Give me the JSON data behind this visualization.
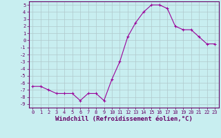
{
  "xlabel": "Windchill (Refroidissement éolien,°C)",
  "x": [
    0,
    1,
    2,
    3,
    4,
    5,
    6,
    7,
    8,
    9,
    10,
    11,
    12,
    13,
    14,
    15,
    16,
    17,
    18,
    19,
    20,
    21,
    22,
    23
  ],
  "y": [
    -6.5,
    -6.5,
    -7.0,
    -7.5,
    -7.5,
    -7.5,
    -8.5,
    -7.5,
    -7.5,
    -8.5,
    -5.5,
    -3.0,
    0.5,
    2.5,
    4.0,
    5.0,
    5.0,
    4.5,
    2.0,
    1.5,
    1.5,
    0.5,
    -0.5,
    -0.5
  ],
  "line_color": "#990099",
  "marker": "+",
  "marker_size": 3,
  "bg_color": "#c8eef0",
  "grid_color": "#b0c8cc",
  "xlim": [
    -0.5,
    23.5
  ],
  "ylim": [
    -9.5,
    5.5
  ],
  "yticks": [
    5,
    4,
    3,
    2,
    1,
    0,
    -1,
    -2,
    -3,
    -4,
    -5,
    -6,
    -7,
    -8,
    -9
  ],
  "xticks": [
    0,
    1,
    2,
    3,
    4,
    5,
    6,
    7,
    8,
    9,
    10,
    11,
    12,
    13,
    14,
    15,
    16,
    17,
    18,
    19,
    20,
    21,
    22,
    23
  ],
  "tick_label_size": 5,
  "xlabel_size": 6.5,
  "axis_color": "#660066"
}
